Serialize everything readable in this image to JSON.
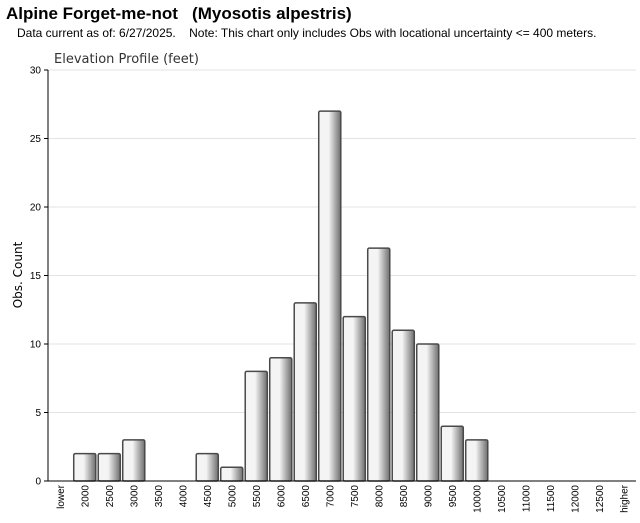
{
  "header": {
    "title": "Alpine Forget-me-not   (Myosotis alpestris)",
    "subtitle": "Data current as of: 6/27/2025.    Note: This chart only includes Obs with locational uncertainty <= 400 meters."
  },
  "chart_data": {
    "type": "bar",
    "title": "Elevation Profile (feet)",
    "xlabel": "",
    "ylabel": "Obs. Count",
    "ylim": [
      0,
      30
    ],
    "yticks": [
      0,
      5,
      10,
      15,
      20,
      25,
      30
    ],
    "grid": true,
    "categories": [
      "lower",
      "2000",
      "2500",
      "3000",
      "3500",
      "4000",
      "4500",
      "5000",
      "5500",
      "6000",
      "6500",
      "7000",
      "7500",
      "8000",
      "8500",
      "9000",
      "9500",
      "10000",
      "10500",
      "11000",
      "11500",
      "12000",
      "12500",
      "higher"
    ],
    "values": [
      0,
      2,
      2,
      3,
      0,
      0,
      2,
      1,
      8,
      9,
      13,
      27,
      12,
      17,
      11,
      10,
      4,
      3,
      0,
      0,
      0,
      0,
      0,
      0
    ],
    "colors": {
      "bar_light": "#f4f4f4",
      "bar_dark": "#6e6e6e",
      "bar_stroke": "#4a4a4a",
      "grid": "#e3e3e3",
      "axis": "#000000"
    }
  }
}
